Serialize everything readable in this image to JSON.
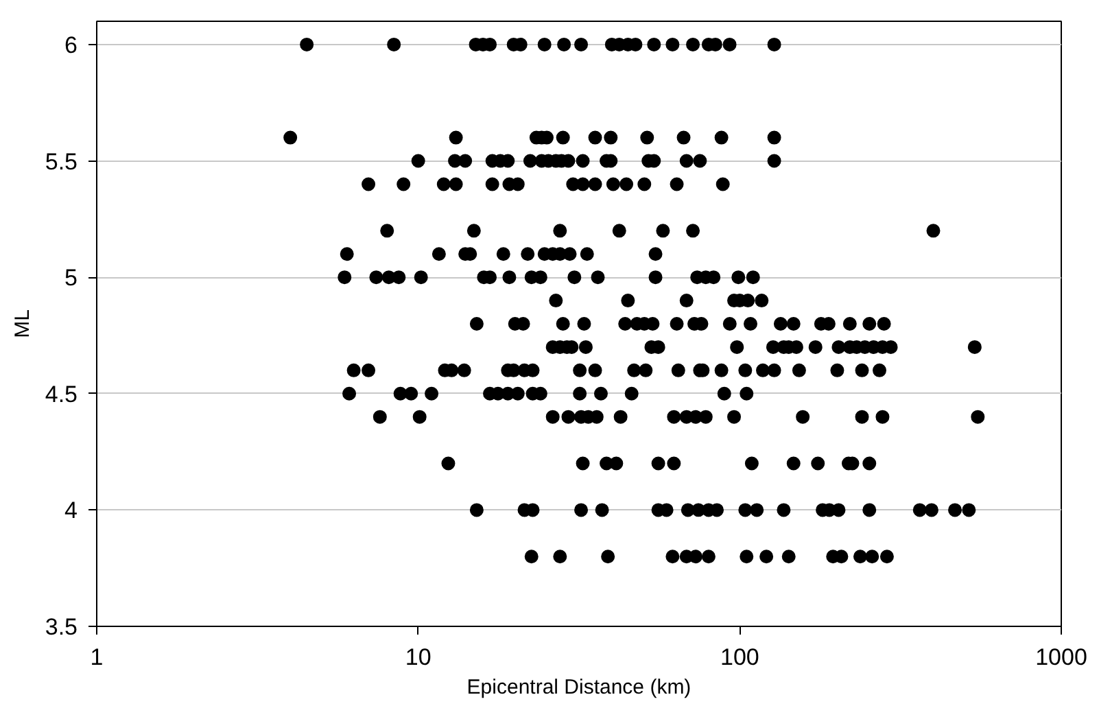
{
  "chart_data": {
    "type": "scatter",
    "xlabel": "Epicentral Distance (km)",
    "ylabel": "ML",
    "log": "x",
    "grid": "y",
    "marker": "circle",
    "xlim": [
      1,
      1000
    ],
    "xticks": [
      1,
      10,
      100,
      1000
    ],
    "ylim": [
      3.5,
      6.1
    ],
    "yticks": [
      3.5,
      4,
      4.5,
      5,
      5.5,
      6
    ],
    "series": [
      {
        "color": "#000000",
        "x": [
          4.5,
          8.4,
          15.1,
          15.9,
          16.7,
          19.8,
          20.8,
          24.7,
          28.4,
          32.1,
          40,
          42.2,
          44.9,
          47.4,
          54.1,
          61.8,
          71.5,
          80,
          84,
          93,
          128,
          4.0,
          13.1,
          23.3,
          24.2,
          25.1,
          28.2,
          35.5,
          39.7,
          51.5,
          66.9,
          87.7,
          128,
          10,
          13,
          14,
          17,
          18,
          19,
          22.3,
          24.2,
          25.4,
          26.8,
          27.9,
          29.3,
          32.5,
          38.5,
          39.7,
          52,
          54.1,
          68.3,
          75.2,
          128,
          7.0,
          9.0,
          12,
          13.1,
          17,
          19.2,
          20.4,
          30.3,
          32.5,
          35.5,
          40.4,
          44.4,
          50.5,
          63.7,
          88.6,
          8.0,
          14.9,
          27.6,
          42.2,
          57.7,
          71.5,
          400,
          6.0,
          11.6,
          14,
          14.5,
          18.4,
          21.9,
          24.7,
          26.2,
          27.6,
          29.6,
          33.5,
          54.7,
          5.9,
          7.4,
          8.1,
          8.7,
          10.2,
          16,
          16.7,
          19.2,
          22.5,
          24,
          30.6,
          36.2,
          54.7,
          73.7,
          78.4,
          82.9,
          99,
          110,
          26.8,
          44.9,
          68.3,
          96,
          100,
          106,
          117,
          15.2,
          20,
          21.2,
          28.2,
          32.8,
          44,
          47.9,
          50.5,
          53.6,
          63.7,
          72.2,
          76,
          93.1,
          108,
          134,
          147,
          179,
          189,
          220,
          253,
          281,
          26.2,
          27.6,
          29,
          30,
          33.2,
          53.1,
          55.8,
          98,
          127,
          137,
          142,
          150,
          172,
          203,
          220,
          231,
          245,
          261,
          278,
          295,
          538,
          6.3,
          7.0,
          12.1,
          12.7,
          13.9,
          19,
          19.8,
          21.4,
          22.7,
          31.8,
          35.5,
          46.9,
          51,
          64.4,
          75.2,
          76.7,
          87.7,
          104,
          118,
          128,
          153,
          201,
          240,
          272,
          6.1,
          8.8,
          9.5,
          11,
          16.7,
          17.7,
          19,
          20.4,
          22.7,
          24,
          31.8,
          37,
          46.1,
          89.5,
          105,
          7.6,
          10.1,
          26.2,
          29.3,
          32.1,
          33.8,
          35.9,
          42.6,
          62.4,
          68.3,
          72.9,
          78.4,
          96,
          157,
          240,
          278,
          550,
          12.4,
          32.5,
          38.5,
          41.3,
          55.8,
          62.4,
          109,
          147,
          175,
          218,
          224,
          253,
          15.2,
          21.4,
          22.7,
          32.1,
          37.3,
          55.8,
          59.2,
          69,
          74.4,
          80,
          84.9,
          104,
          113,
          137,
          181,
          190,
          203,
          253,
          363,
          395,
          467,
          516,
          22.5,
          27.6,
          38.9,
          61.8,
          68.3,
          72.9,
          80,
          105,
          121,
          142,
          195,
          207,
          237,
          258,
          287
        ],
        "values": [
          6,
          6,
          6,
          6,
          6,
          6,
          6,
          6,
          6,
          6,
          6,
          6,
          6,
          6,
          6,
          6,
          6,
          6,
          6,
          6,
          6,
          5.6,
          5.6,
          5.6,
          5.6,
          5.6,
          5.6,
          5.6,
          5.6,
          5.6,
          5.6,
          5.6,
          5.6,
          5.5,
          5.5,
          5.5,
          5.5,
          5.5,
          5.5,
          5.5,
          5.5,
          5.5,
          5.5,
          5.5,
          5.5,
          5.5,
          5.5,
          5.5,
          5.5,
          5.5,
          5.5,
          5.5,
          5.5,
          5.4,
          5.4,
          5.4,
          5.4,
          5.4,
          5.4,
          5.4,
          5.4,
          5.4,
          5.4,
          5.4,
          5.4,
          5.4,
          5.4,
          5.4,
          5.2,
          5.2,
          5.2,
          5.2,
          5.2,
          5.2,
          5.2,
          5.1,
          5.1,
          5.1,
          5.1,
          5.1,
          5.1,
          5.1,
          5.1,
          5.1,
          5.1,
          5.1,
          5.1,
          5,
          5,
          5,
          5,
          5,
          5,
          5,
          5,
          5,
          5,
          5,
          5,
          5,
          5,
          5,
          5,
          5,
          5,
          4.9,
          4.9,
          4.9,
          4.9,
          4.9,
          4.9,
          4.9,
          4.8,
          4.8,
          4.8,
          4.8,
          4.8,
          4.8,
          4.8,
          4.8,
          4.8,
          4.8,
          4.8,
          4.8,
          4.8,
          4.8,
          4.8,
          4.8,
          4.8,
          4.8,
          4.8,
          4.8,
          4.8,
          4.7,
          4.7,
          4.7,
          4.7,
          4.7,
          4.7,
          4.7,
          4.7,
          4.7,
          4.7,
          4.7,
          4.7,
          4.7,
          4.7,
          4.7,
          4.7,
          4.7,
          4.7,
          4.7,
          4.7,
          4.7,
          4.6,
          4.6,
          4.6,
          4.6,
          4.6,
          4.6,
          4.6,
          4.6,
          4.6,
          4.6,
          4.6,
          4.6,
          4.6,
          4.6,
          4.6,
          4.6,
          4.6,
          4.6,
          4.6,
          4.6,
          4.6,
          4.6,
          4.6,
          4.6,
          4.5,
          4.5,
          4.5,
          4.5,
          4.5,
          4.5,
          4.5,
          4.5,
          4.5,
          4.5,
          4.5,
          4.5,
          4.5,
          4.5,
          4.5,
          4.4,
          4.4,
          4.4,
          4.4,
          4.4,
          4.4,
          4.4,
          4.4,
          4.4,
          4.4,
          4.4,
          4.4,
          4.4,
          4.4,
          4.4,
          4.4,
          4.4,
          4.2,
          4.2,
          4.2,
          4.2,
          4.2,
          4.2,
          4.2,
          4.2,
          4.2,
          4.2,
          4.2,
          4.2,
          4,
          4,
          4,
          4,
          4,
          4,
          4,
          4,
          4,
          4,
          4,
          4,
          4,
          4,
          4,
          4,
          4,
          4,
          4,
          4,
          4,
          4,
          3.8,
          3.8,
          3.8,
          3.8,
          3.8,
          3.8,
          3.8,
          3.8,
          3.8,
          3.8,
          3.8,
          3.8,
          3.8,
          3.8,
          3.8
        ]
      }
    ]
  }
}
